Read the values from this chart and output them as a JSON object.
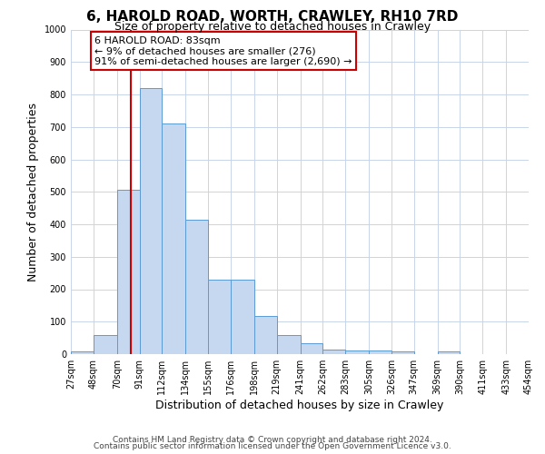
{
  "title": "6, HAROLD ROAD, WORTH, CRAWLEY, RH10 7RD",
  "subtitle": "Size of property relative to detached houses in Crawley",
  "xlabel": "Distribution of detached houses by size in Crawley",
  "ylabel": "Number of detached properties",
  "bin_edges": [
    27,
    48,
    70,
    91,
    112,
    134,
    155,
    176,
    198,
    219,
    241,
    262,
    283,
    305,
    326,
    347,
    369,
    390,
    411,
    433,
    454
  ],
  "bar_heights": [
    8,
    58,
    505,
    820,
    710,
    415,
    230,
    230,
    118,
    58,
    33,
    15,
    12,
    12,
    8,
    0,
    8,
    0,
    0,
    0
  ],
  "bar_color": "#c5d8f0",
  "bar_edge_color": "#5b9bd5",
  "property_line_x": 83,
  "property_line_color": "#cc0000",
  "annotation_text": "6 HAROLD ROAD: 83sqm\n← 9% of detached houses are smaller (276)\n91% of semi-detached houses are larger (2,690) →",
  "annotation_box_color": "#ffffff",
  "annotation_box_edge_color": "#cc0000",
  "ylim": [
    0,
    1000
  ],
  "yticks": [
    0,
    100,
    200,
    300,
    400,
    500,
    600,
    700,
    800,
    900,
    1000
  ],
  "footer_line1": "Contains HM Land Registry data © Crown copyright and database right 2024.",
  "footer_line2": "Contains public sector information licensed under the Open Government Licence v3.0.",
  "background_color": "#ffffff",
  "grid_color": "#c8d4e8",
  "title_fontsize": 11,
  "subtitle_fontsize": 9,
  "axis_label_fontsize": 9,
  "tick_fontsize": 7,
  "annotation_fontsize": 8,
  "footer_fontsize": 6.5
}
